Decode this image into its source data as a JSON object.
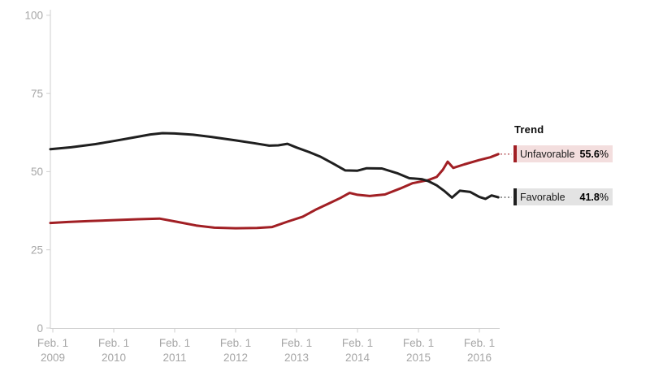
{
  "legend": {
    "title": "Trend",
    "items": [
      {
        "id": "unfavorable",
        "label": "Unfavorable",
        "value": "55.6",
        "suffix": "%",
        "line_color": "#a11f24",
        "bg_color": "#f3dede"
      },
      {
        "id": "favorable",
        "label": "Favorable",
        "value": "41.8",
        "suffix": "%",
        "line_color": "#1f1f1f",
        "bg_color": "#e3e3e3"
      }
    ]
  },
  "chart_data": {
    "type": "line",
    "title": "Trend",
    "xlabel": "",
    "ylabel": "",
    "ylim": [
      0,
      100
    ],
    "y_ticks": [
      0,
      25,
      50,
      75,
      100
    ],
    "x_tick_prefix": "Feb. 1",
    "x_ticks": [
      {
        "line1": "Feb. 1",
        "line2": "2009",
        "t": 0
      },
      {
        "line1": "Feb. 1",
        "line2": "2010",
        "t": 1
      },
      {
        "line1": "Feb. 1",
        "line2": "2011",
        "t": 2
      },
      {
        "line1": "Feb. 1",
        "line2": "2012",
        "t": 3
      },
      {
        "line1": "Feb. 1",
        "line2": "2013",
        "t": 4
      },
      {
        "line1": "Feb. 1",
        "line2": "2014",
        "t": 5
      },
      {
        "line1": "Feb. 1",
        "line2": "2015",
        "t": 6
      },
      {
        "line1": "Feb. 1",
        "line2": "2016",
        "t": 7
      }
    ],
    "x_unit_note": "t = years since Feb 1, 2009",
    "grid": false,
    "legend_position": "right",
    "axis_color": "#cfcfcf",
    "tick_label_color": "#a6a6a6",
    "series": [
      {
        "name": "Unfavorable",
        "color": "#a11f24",
        "end_value": 55.6,
        "points": [
          [
            -0.04,
            33.6
          ],
          [
            0.25,
            33.9
          ],
          [
            0.6,
            34.2
          ],
          [
            1.0,
            34.5
          ],
          [
            1.4,
            34.8
          ],
          [
            1.75,
            35.0
          ],
          [
            2.05,
            33.9
          ],
          [
            2.35,
            32.8
          ],
          [
            2.65,
            32.1
          ],
          [
            3.0,
            31.9
          ],
          [
            3.35,
            32.0
          ],
          [
            3.6,
            32.3
          ],
          [
            3.85,
            34.0
          ],
          [
            4.1,
            35.6
          ],
          [
            4.33,
            38.0
          ],
          [
            4.55,
            40.0
          ],
          [
            4.72,
            41.6
          ],
          [
            4.87,
            43.2
          ],
          [
            5.0,
            42.6
          ],
          [
            5.2,
            42.2
          ],
          [
            5.45,
            42.7
          ],
          [
            5.7,
            44.6
          ],
          [
            5.9,
            46.3
          ],
          [
            6.16,
            47.3
          ],
          [
            6.3,
            48.3
          ],
          [
            6.4,
            50.6
          ],
          [
            6.48,
            53.2
          ],
          [
            6.57,
            51.2
          ],
          [
            6.75,
            52.3
          ],
          [
            7.0,
            53.7
          ],
          [
            7.18,
            54.6
          ],
          [
            7.31,
            55.6
          ]
        ]
      },
      {
        "name": "Favorable",
        "color": "#1f1f1f",
        "end_value": 41.8,
        "points": [
          [
            -0.04,
            57.2
          ],
          [
            0.3,
            57.8
          ],
          [
            0.7,
            58.8
          ],
          [
            1.0,
            59.8
          ],
          [
            1.35,
            61.0
          ],
          [
            1.6,
            61.9
          ],
          [
            1.8,
            62.3
          ],
          [
            2.0,
            62.2
          ],
          [
            2.3,
            61.8
          ],
          [
            2.6,
            61.1
          ],
          [
            3.0,
            60.0
          ],
          [
            3.3,
            59.1
          ],
          [
            3.55,
            58.3
          ],
          [
            3.7,
            58.4
          ],
          [
            3.85,
            58.9
          ],
          [
            4.0,
            57.7
          ],
          [
            4.2,
            56.3
          ],
          [
            4.4,
            54.7
          ],
          [
            4.6,
            52.6
          ],
          [
            4.8,
            50.4
          ],
          [
            5.0,
            50.3
          ],
          [
            5.15,
            51.1
          ],
          [
            5.4,
            51.0
          ],
          [
            5.65,
            49.5
          ],
          [
            5.85,
            47.9
          ],
          [
            6.05,
            47.6
          ],
          [
            6.16,
            47.0
          ],
          [
            6.3,
            45.6
          ],
          [
            6.42,
            43.9
          ],
          [
            6.55,
            41.7
          ],
          [
            6.68,
            43.9
          ],
          [
            6.85,
            43.5
          ],
          [
            7.0,
            41.9
          ],
          [
            7.1,
            41.3
          ],
          [
            7.2,
            42.4
          ],
          [
            7.31,
            41.8
          ]
        ]
      }
    ]
  }
}
